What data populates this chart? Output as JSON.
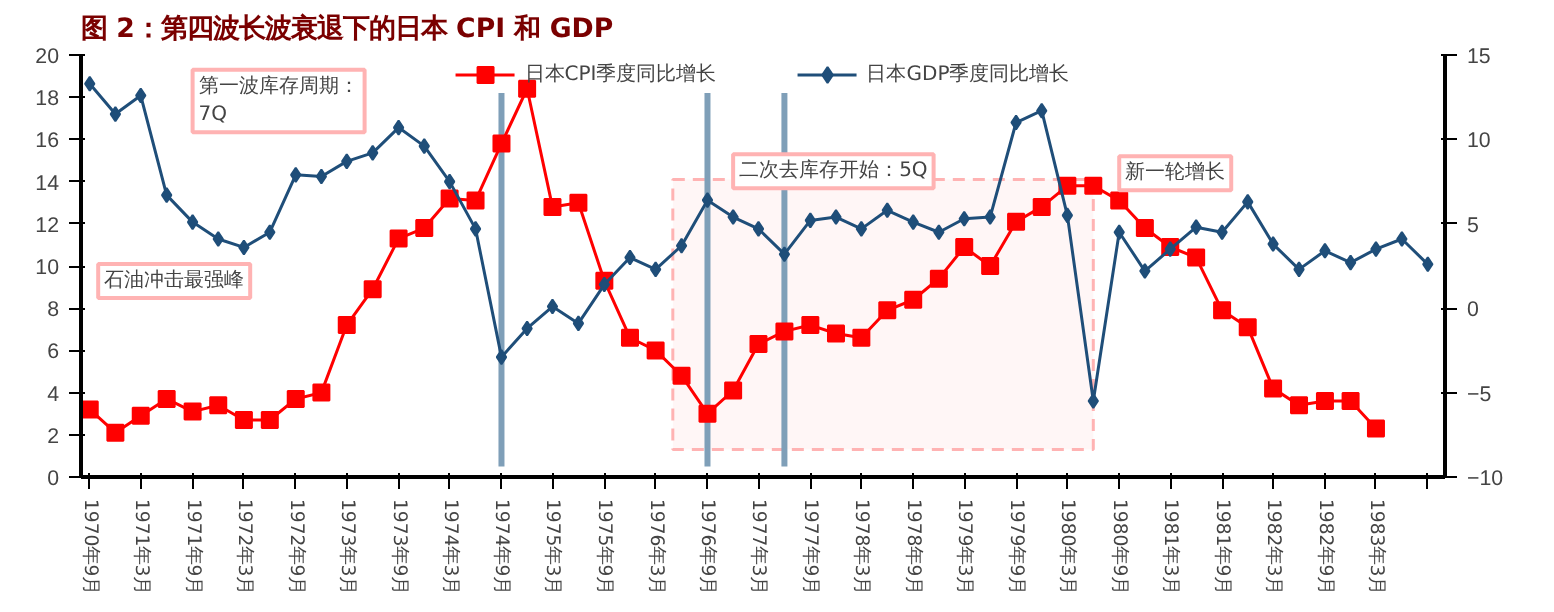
{
  "chart_data": {
    "type": "line",
    "title": "图 2：第四波长波衰退下的日本 CPI 和 GDP",
    "x": [
      "1970-09",
      "1970-12",
      "1971-03",
      "1971-06",
      "1971-09",
      "1971-12",
      "1972-03",
      "1972-06",
      "1972-09",
      "1972-12",
      "1973-03",
      "1973-06",
      "1973-09",
      "1973-12",
      "1974-03",
      "1974-06",
      "1974-09",
      "1974-12",
      "1975-03",
      "1975-06",
      "1975-09",
      "1975-12",
      "1976-03",
      "1976-06",
      "1976-09",
      "1976-12",
      "1977-03",
      "1977-06",
      "1977-09",
      "1977-12",
      "1978-03",
      "1978-06",
      "1978-09",
      "1978-12",
      "1979-03",
      "1979-06",
      "1979-09",
      "1979-12",
      "1980-03",
      "1980-06",
      "1980-09",
      "1980-12",
      "1981-03",
      "1981-06",
      "1981-09",
      "1981-12",
      "1982-03",
      "1982-06",
      "1982-09",
      "1982-12",
      "1983-03",
      "1983-06",
      "1983-09"
    ],
    "series": [
      {
        "name": "日本CPI季度同比增长",
        "color": "#ff0000",
        "marker": "square",
        "values": [
          3.2,
          2.1,
          2.9,
          3.7,
          3.1,
          3.4,
          2.7,
          2.7,
          3.7,
          4.0,
          7.2,
          8.9,
          11.3,
          11.8,
          13.2,
          13.1,
          15.8,
          18.4,
          12.8,
          13.0,
          9.3,
          6.6,
          6.0,
          4.8,
          3.0,
          4.1,
          6.3,
          6.9,
          7.2,
          6.8,
          6.6,
          7.9,
          8.4,
          9.4,
          10.9,
          10.0,
          12.1,
          12.8,
          13.8,
          13.8,
          13.1,
          11.8,
          10.9,
          10.4,
          7.9,
          7.1,
          4.2,
          3.4,
          3.6,
          3.6,
          2.3,
          null,
          null
        ]
      },
      {
        "name": "日本GDP季度同比增长",
        "color": "#1f4e79",
        "marker": "diamond",
        "axis": "y2",
        "values": [
          13.3,
          11.5,
          12.6,
          6.7,
          5.1,
          4.1,
          3.6,
          4.5,
          7.9,
          7.8,
          8.7,
          9.2,
          10.7,
          9.6,
          7.5,
          4.7,
          -2.9,
          -1.2,
          0.1,
          -0.9,
          1.4,
          3.0,
          2.3,
          3.7,
          6.4,
          5.4,
          4.7,
          3.2,
          5.2,
          5.4,
          4.7,
          5.8,
          5.1,
          4.5,
          5.3,
          5.4,
          11.0,
          11.7,
          5.5,
          -5.5,
          4.5,
          2.2,
          3.5,
          4.8,
          4.5,
          6.3,
          3.8,
          2.3,
          3.4,
          2.7,
          3.5,
          4.1,
          2.6
        ]
      }
    ],
    "xlim": [
      "1970-08",
      "1983-11"
    ],
    "xticks": [
      {
        "value": "1970-09",
        "label": "1970年9月"
      },
      {
        "value": "1971-03",
        "label": "1971年3月"
      },
      {
        "value": "1971-09",
        "label": "1971年9月"
      },
      {
        "value": "1972-03",
        "label": "1972年3月"
      },
      {
        "value": "1972-09",
        "label": "1972年9月"
      },
      {
        "value": "1973-03",
        "label": "1973年3月"
      },
      {
        "value": "1973-09",
        "label": "1973年9月"
      },
      {
        "value": "1974-03",
        "label": "1974年3月"
      },
      {
        "value": "1974-09",
        "label": "1974年9月"
      },
      {
        "value": "1975-03",
        "label": "1975年3月"
      },
      {
        "value": "1975-09",
        "label": "1975年9月"
      },
      {
        "value": "1976-03",
        "label": "1976年3月"
      },
      {
        "value": "1976-09",
        "label": "1976年9月"
      },
      {
        "value": "1977-03",
        "label": "1977年3月"
      },
      {
        "value": "1977-09",
        "label": "1977年9月"
      },
      {
        "value": "1978-03",
        "label": "1978年3月"
      },
      {
        "value": "1978-09",
        "label": "1978年9月"
      },
      {
        "value": "1979-03",
        "label": "1979年3月"
      },
      {
        "value": "1979-09",
        "label": "1979年9月"
      },
      {
        "value": "1980-03",
        "label": "1980年3月"
      },
      {
        "value": "1980-09",
        "label": "1980年9月"
      },
      {
        "value": "1981-03",
        "label": "1981年3月"
      },
      {
        "value": "1981-09",
        "label": "1981年9月"
      },
      {
        "value": "1982-03",
        "label": "1982年3月"
      },
      {
        "value": "1982-09",
        "label": "1982年9月"
      },
      {
        "value": "1983-03",
        "label": "1983年3月"
      },
      {
        "value": "1983-09",
        "label": null
      }
    ],
    "ylim": [
      0,
      20
    ],
    "yticks": [
      0,
      2,
      4,
      6,
      8,
      10,
      12,
      14,
      16,
      18,
      20
    ],
    "y2lim": [
      -10,
      15
    ],
    "y2ticks": [
      -10,
      -5,
      0,
      5,
      10,
      15
    ],
    "ref_lines": [
      {
        "axis": "x",
        "value": "1974-09",
        "color": "#7f9fb8"
      },
      {
        "axis": "x",
        "value": "1976-09",
        "color": "#7f9fb8"
      },
      {
        "axis": "x",
        "value": "1977-06",
        "color": "#7f9fb8"
      }
    ],
    "bands": [
      {
        "axis": "x",
        "from": "1976-05",
        "to": "1980-06",
        "color": "#ffb3b3"
      }
    ],
    "annotations": [
      "第一波库存周期：\n7Q",
      "石油冲击最强峰",
      "二次去库存开始：5Q",
      "新一轮增长"
    ],
    "legend": "top",
    "grid": false,
    "line_style": "solid"
  }
}
